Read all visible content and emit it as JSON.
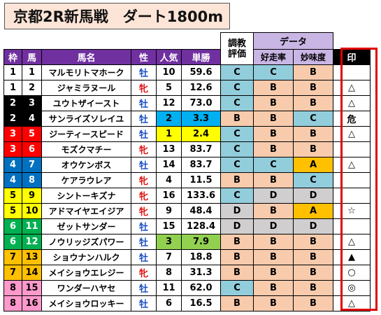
{
  "title": "京都2R新馬戦　ダート1800m",
  "header": {
    "eval_top": "調教",
    "eval_bottom": "評価",
    "data_group": "データ",
    "cols": [
      "枠",
      "馬",
      "馬名",
      "性",
      "人気",
      "単勝"
    ],
    "speed": "好走率",
    "appeal": "妙味度",
    "mark": "印"
  },
  "colors": {
    "frame1": "#ffffff",
    "frame2": "#000000",
    "frame3": "#ff0000",
    "frame4": "#0070c0",
    "frame5": "#ffff00",
    "frame6": "#00b050",
    "frame7": "#ffc000",
    "frame8": "#ff99cc",
    "pop_highlight_1": "#ffff00",
    "pop_highlight_2": "#00b0f0",
    "pop_highlight_3": "#92d050"
  },
  "rows": [
    {
      "waku": "1",
      "uma": "1",
      "name": "マルモリトマホーク",
      "sex": "牡",
      "pop": "10",
      "odds": "59.6",
      "eval": "C",
      "speed": "C",
      "appeal": "B",
      "mark": ""
    },
    {
      "waku": "1",
      "uma": "2",
      "name": "ジャミラヌール",
      "sex": "牝",
      "pop": "5",
      "odds": "12.6",
      "eval": "C",
      "speed": "B",
      "appeal": "B",
      "mark": "△"
    },
    {
      "waku": "2",
      "uma": "3",
      "name": "ユウトザイースト",
      "sex": "牡",
      "pop": "12",
      "odds": "73.0",
      "eval": "C",
      "speed": "B",
      "appeal": "B",
      "mark": "△"
    },
    {
      "waku": "2",
      "uma": "4",
      "name": "サンライズソレイユ",
      "sex": "牡",
      "pop": "2",
      "odds": "3.3",
      "eval": "B",
      "speed": "B",
      "appeal": "C",
      "mark": "危"
    },
    {
      "waku": "3",
      "uma": "5",
      "name": "ジーティースピード",
      "sex": "牡",
      "pop": "1",
      "odds": "2.4",
      "eval": "C",
      "speed": "B",
      "appeal": "B",
      "mark": "△"
    },
    {
      "waku": "3",
      "uma": "6",
      "name": "モズクマチー",
      "sex": "牝",
      "pop": "13",
      "odds": "83.7",
      "eval": "C",
      "speed": "B",
      "appeal": "B",
      "mark": ""
    },
    {
      "waku": "4",
      "uma": "7",
      "name": "オウケンボス",
      "sex": "牡",
      "pop": "14",
      "odds": "83.7",
      "eval": "C",
      "speed": "C",
      "appeal": "A",
      "mark": "△"
    },
    {
      "waku": "4",
      "uma": "8",
      "name": "ケアラウレア",
      "sex": "牝",
      "pop": "4",
      "odds": "11.5",
      "eval": "B",
      "speed": "B",
      "appeal": "C",
      "mark": ""
    },
    {
      "waku": "5",
      "uma": "9",
      "name": "シントーキズナ",
      "sex": "牝",
      "pop": "16",
      "odds": "133.6",
      "eval": "C",
      "speed": "D",
      "appeal": "D",
      "mark": ""
    },
    {
      "waku": "5",
      "uma": "10",
      "name": "アドマイヤエイジア",
      "sex": "牝",
      "pop": "9",
      "odds": "48.4",
      "eval": "D",
      "speed": "B",
      "appeal": "A",
      "mark": "☆"
    },
    {
      "waku": "6",
      "uma": "11",
      "name": "ゼットサンダー",
      "sex": "牡",
      "pop": "15",
      "odds": "128.4",
      "eval": "D",
      "speed": "D",
      "appeal": "D",
      "mark": ""
    },
    {
      "waku": "6",
      "uma": "12",
      "name": "ノウリッジズパワー",
      "sex": "牡",
      "pop": "3",
      "odds": "7.9",
      "eval": "B",
      "speed": "B",
      "appeal": "B",
      "mark": "△"
    },
    {
      "waku": "7",
      "uma": "13",
      "name": "ショウナンハルク",
      "sex": "牡",
      "pop": "7",
      "odds": "18.8",
      "eval": "B",
      "speed": "B",
      "appeal": "B",
      "mark": "▲"
    },
    {
      "waku": "7",
      "uma": "14",
      "name": "メイショウエレジー",
      "sex": "牝",
      "pop": "8",
      "odds": "31.3",
      "eval": "B",
      "speed": "B",
      "appeal": "B",
      "mark": "○"
    },
    {
      "waku": "8",
      "uma": "15",
      "name": "ワンダーハヤセ",
      "sex": "牡",
      "pop": "11",
      "odds": "62.0",
      "eval": "C",
      "speed": "B",
      "appeal": "B",
      "mark": "◎"
    },
    {
      "waku": "8",
      "uma": "16",
      "name": "メイショウロッキー",
      "sex": "牡",
      "pop": "6",
      "odds": "16.5",
      "eval": "B",
      "speed": "B",
      "appeal": "B",
      "mark": "△"
    }
  ]
}
